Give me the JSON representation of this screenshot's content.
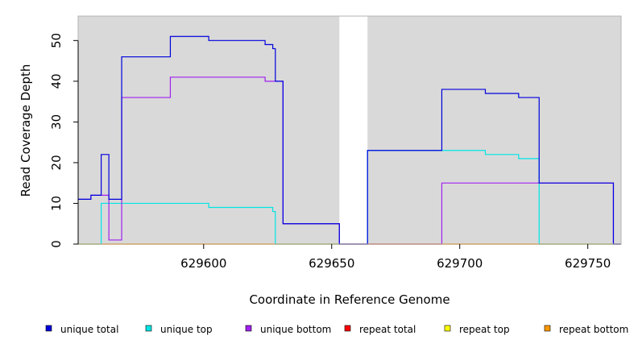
{
  "chart_data": {
    "type": "line",
    "subtype": "step",
    "title": "",
    "xlabel": "Coordinate in Reference Genome",
    "ylabel": "Read Coverage Depth",
    "xlim": [
      629551,
      629763
    ],
    "ylim": [
      0,
      56
    ],
    "x_ticks": [
      629600,
      629650,
      629700,
      629750
    ],
    "y_ticks": [
      0,
      10,
      20,
      30,
      40,
      50
    ],
    "grid": false,
    "background": "#d9d9d9",
    "gap_region": [
      629653,
      629664
    ],
    "legend_position": "bottom",
    "series": [
      {
        "name": "unique total",
        "color": "#0000dd",
        "points": [
          [
            629551,
            11
          ],
          [
            629556,
            11
          ],
          [
            629556,
            12
          ],
          [
            629560,
            12
          ],
          [
            629560,
            22
          ],
          [
            629563,
            22
          ],
          [
            629563,
            11
          ],
          [
            629568,
            11
          ],
          [
            629568,
            46
          ],
          [
            629587,
            46
          ],
          [
            629587,
            51
          ],
          [
            629602,
            51
          ],
          [
            629602,
            50
          ],
          [
            629624,
            50
          ],
          [
            629624,
            49
          ],
          [
            629627,
            49
          ],
          [
            629627,
            48
          ],
          [
            629628,
            48
          ],
          [
            629628,
            40
          ],
          [
            629631,
            40
          ],
          [
            629631,
            5
          ],
          [
            629653,
            5
          ],
          [
            629653,
            0
          ],
          [
            629664,
            0
          ],
          [
            629664,
            23
          ],
          [
            629693,
            23
          ],
          [
            629693,
            38
          ],
          [
            629710,
            38
          ],
          [
            629710,
            37
          ],
          [
            629723,
            37
          ],
          [
            629723,
            36
          ],
          [
            629731,
            36
          ],
          [
            629731,
            15
          ],
          [
            629760,
            15
          ],
          [
            629760,
            0
          ],
          [
            629763,
            0
          ]
        ]
      },
      {
        "name": "unique top",
        "color": "#00e5e5",
        "points": [
          [
            629551,
            0
          ],
          [
            629560,
            0
          ],
          [
            629560,
            10
          ],
          [
            629602,
            10
          ],
          [
            629602,
            9
          ],
          [
            629627,
            9
          ],
          [
            629627,
            8
          ],
          [
            629628,
            8
          ],
          [
            629628,
            0
          ],
          [
            629664,
            0
          ],
          [
            629664,
            23
          ],
          [
            629710,
            23
          ],
          [
            629710,
            22
          ],
          [
            629723,
            22
          ],
          [
            629723,
            21
          ],
          [
            629731,
            21
          ],
          [
            629731,
            0
          ],
          [
            629763,
            0
          ]
        ]
      },
      {
        "name": "unique bottom",
        "color": "#a020f0",
        "points": [
          [
            629551,
            11
          ],
          [
            629556,
            11
          ],
          [
            629556,
            12
          ],
          [
            629563,
            12
          ],
          [
            629563,
            1
          ],
          [
            629568,
            1
          ],
          [
            629568,
            36
          ],
          [
            629587,
            36
          ],
          [
            629587,
            41
          ],
          [
            629624,
            41
          ],
          [
            629624,
            40
          ],
          [
            629631,
            40
          ],
          [
            629631,
            5
          ],
          [
            629653,
            5
          ],
          [
            629653,
            0
          ],
          [
            629693,
            0
          ],
          [
            629693,
            15
          ],
          [
            629760,
            15
          ],
          [
            629760,
            0
          ],
          [
            629763,
            0
          ]
        ]
      },
      {
        "name": "repeat total",
        "color": "#ff0000",
        "points": [
          [
            629551,
            0
          ],
          [
            629763,
            0
          ]
        ]
      },
      {
        "name": "repeat top",
        "color": "#ffff00",
        "points": [
          [
            629551,
            0
          ],
          [
            629763,
            0
          ]
        ]
      },
      {
        "name": "repeat bottom",
        "color": "#ff9900",
        "points": [
          [
            629551,
            0
          ],
          [
            629763,
            0
          ]
        ]
      }
    ]
  }
}
